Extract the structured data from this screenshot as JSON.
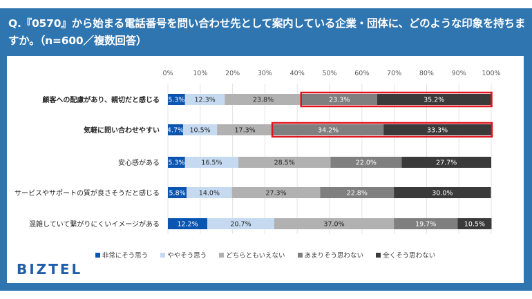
{
  "title": "Q.『0570』から始まる電話番号を問い合わせ先として案内している企業・団体に、どのような印象を持ちますか。（n=600／複数回答）",
  "logo": "BIZTEL",
  "chart_data": {
    "type": "bar",
    "orientation": "horizontal",
    "stacked": true,
    "title": "Q.『0570』から始まる電話番号を問い合わせ先として案内している企業・団体に、どのような印象を持ちますか。（n=600／複数回答）",
    "xlabel": "",
    "ylabel": "",
    "xlim": [
      0,
      100
    ],
    "x_ticks": [
      "0%",
      "10%",
      "20%",
      "30%",
      "40%",
      "50%",
      "60%",
      "70%",
      "80%",
      "90%",
      "100%"
    ],
    "grid": true,
    "legend_position": "bottom",
    "categories": [
      "顧客への配慮があり、親切だと感じる",
      "気軽に問い合わせやすい",
      "安心感がある",
      "サービスやサポートの質が良さそうだと感じる",
      "混雑していて繋がりにくいイメージがある"
    ],
    "bold_categories": [
      0,
      1
    ],
    "series": [
      {
        "name": "非常にそう思う",
        "color": "#0b55b2",
        "label_color": "#ffffff",
        "values": [
          5.3,
          4.7,
          5.3,
          5.8,
          12.2
        ]
      },
      {
        "name": "ややそう思う",
        "color": "#c5d9f0",
        "label_color": "#262626",
        "values": [
          12.3,
          10.5,
          16.5,
          14.0,
          20.7
        ]
      },
      {
        "name": "どちらともいえない",
        "color": "#b1b1b1",
        "label_color": "#262626",
        "values": [
          23.8,
          17.3,
          28.5,
          27.3,
          37.0
        ]
      },
      {
        "name": "あまりそう思わない",
        "color": "#7f7f7f",
        "label_color": "#ffffff",
        "values": [
          23.3,
          34.2,
          22.0,
          22.8,
          19.7
        ]
      },
      {
        "name": "全くそう思わない",
        "color": "#3a3a3a",
        "label_color": "#ffffff",
        "values": [
          35.2,
          33.3,
          27.7,
          30.0,
          10.5
        ]
      }
    ],
    "highlights": [
      {
        "category_index": 0,
        "series_from": 3,
        "series_to": 4,
        "color": "#e0141e"
      },
      {
        "category_index": 1,
        "series_from": 3,
        "series_to": 4,
        "color": "#e0141e"
      }
    ]
  }
}
